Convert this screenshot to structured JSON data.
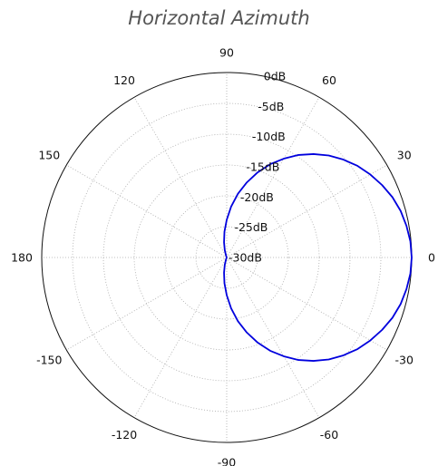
{
  "chart_data": {
    "type": "polar-line",
    "title": "Horizontal Azimuth",
    "angle_ticks": [
      {
        "deg": 0,
        "label": "0"
      },
      {
        "deg": 30,
        "label": "30"
      },
      {
        "deg": 60,
        "label": "60"
      },
      {
        "deg": 90,
        "label": "90"
      },
      {
        "deg": 120,
        "label": "120"
      },
      {
        "deg": 150,
        "label": "150"
      },
      {
        "deg": 180,
        "label": "180"
      },
      {
        "deg": -150,
        "label": "-150"
      },
      {
        "deg": -120,
        "label": "-120"
      },
      {
        "deg": -90,
        "label": "-90"
      },
      {
        "deg": -60,
        "label": "-60"
      },
      {
        "deg": -30,
        "label": "-30"
      }
    ],
    "radial_ticks": [
      {
        "value": 0,
        "label": "0dB"
      },
      {
        "value": -5,
        "label": "-5dB"
      },
      {
        "value": -10,
        "label": "-10dB"
      },
      {
        "value": -15,
        "label": "-15dB"
      },
      {
        "value": -20,
        "label": "-20dB"
      },
      {
        "value": -25,
        "label": "-25dB"
      },
      {
        "value": -30,
        "label": "-30dB"
      }
    ],
    "rlim": [
      -30,
      0
    ],
    "grid": true,
    "series": [
      {
        "color": "#0000dd",
        "angles_deg": [
          0,
          5,
          10,
          15,
          20,
          25,
          30,
          35,
          40,
          45,
          50,
          55,
          60,
          65,
          70,
          75,
          80,
          85,
          90,
          95,
          100,
          105,
          110,
          115,
          120,
          125,
          130,
          135,
          140,
          145,
          150,
          155,
          160,
          165,
          170,
          175,
          180
        ],
        "values_db": [
          0.0,
          -0.1,
          -0.4,
          -0.8,
          -1.4,
          -2.2,
          -3.1,
          -4.1,
          -5.3,
          -6.6,
          -8.1,
          -9.7,
          -11.5,
          -13.3,
          -15.3,
          -17.4,
          -19.5,
          -21.7,
          -23.9,
          -25.8,
          -27.5,
          -28.8,
          -29.7,
          -30,
          -30,
          -30,
          -30,
          -30,
          -30,
          -30,
          -30,
          -30,
          -30,
          -30,
          -30,
          -30,
          -30
        ],
        "symmetric": true
      }
    ]
  }
}
